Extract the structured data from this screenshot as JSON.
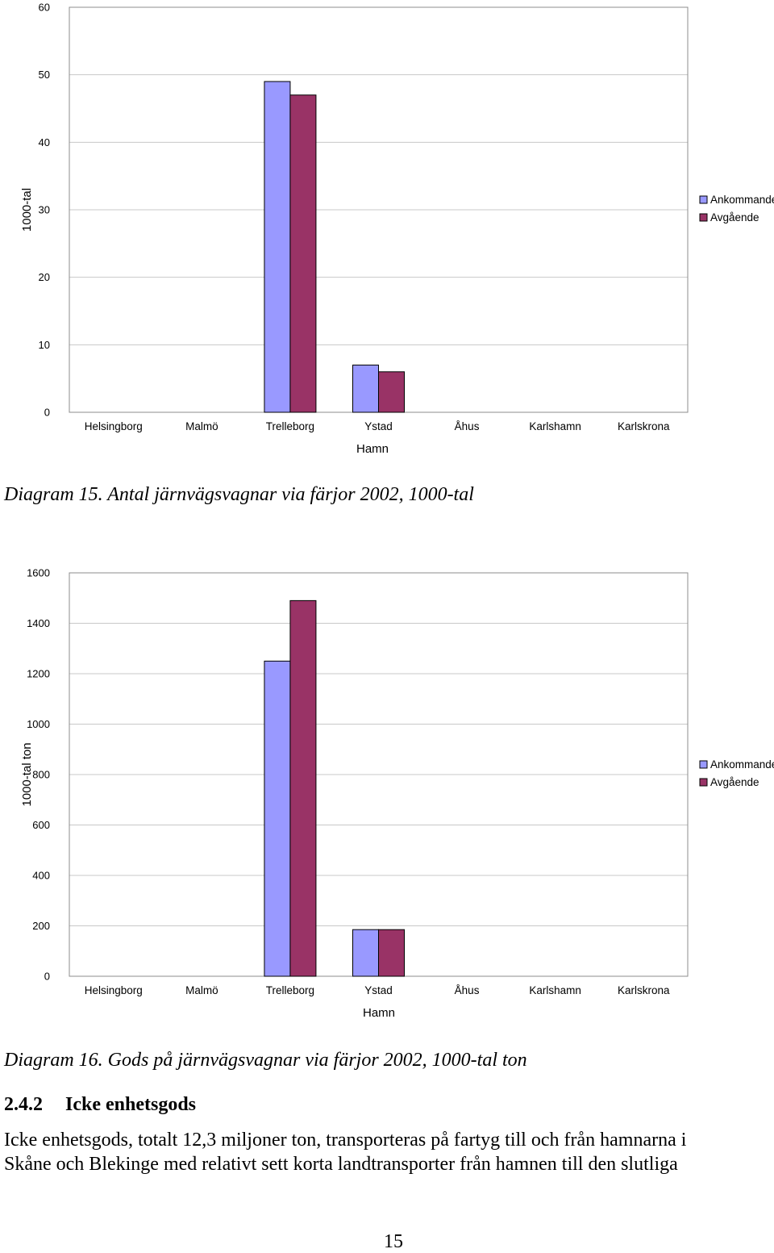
{
  "colors": {
    "ankommande": "#9999ff",
    "avgaende": "#993366",
    "gridline": "#c8c8c8",
    "bar_stroke": "#000000"
  },
  "chart_data": [
    {
      "type": "bar",
      "title": "",
      "xlabel": "Hamn",
      "ylabel": "1000-tal",
      "categories": [
        "Helsingborg",
        "Malmö",
        "Trelleborg",
        "Ystad",
        "Åhus",
        "Karlshamn",
        "Karlskrona"
      ],
      "series": [
        {
          "name": "Ankommande",
          "values": [
            0,
            0,
            49,
            7,
            0,
            0,
            0
          ]
        },
        {
          "name": "Avgående",
          "values": [
            0,
            0,
            47,
            6,
            0,
            0,
            0
          ]
        }
      ],
      "ylim": [
        0,
        60
      ],
      "yticks": [
        "0",
        "10",
        "20",
        "30",
        "40",
        "50",
        "60"
      ],
      "grid": true,
      "legend_position": "right"
    },
    {
      "type": "bar",
      "title": "",
      "xlabel": "Hamn",
      "ylabel": "1000-tal ton",
      "categories": [
        "Helsingborg",
        "Malmö",
        "Trelleborg",
        "Ystad",
        "Åhus",
        "Karlshamn",
        "Karlskrona"
      ],
      "series": [
        {
          "name": "Ankommande",
          "values": [
            0,
            0,
            1250,
            185,
            0,
            0,
            0
          ]
        },
        {
          "name": "Avgående",
          "values": [
            0,
            0,
            1490,
            185,
            0,
            0,
            0
          ]
        }
      ],
      "ylim": [
        0,
        1600
      ],
      "yticks": [
        "0",
        "200",
        "400",
        "600",
        "800",
        "1000",
        "1200",
        "1400",
        "1600"
      ],
      "grid": true,
      "legend_position": "right"
    }
  ],
  "captions": {
    "diagram15": "Diagram 15. Antal järnvägsvagnar via färjor 2002, 1000-tal",
    "diagram16": "Diagram 16. Gods på järnvägsvagnar via färjor 2002, 1000-tal ton"
  },
  "section": {
    "number": "2.4.2",
    "title": "Icke enhetsgods"
  },
  "body_lines": [
    "Icke enhetsgods, totalt 12,3 miljoner ton, transporteras på fartyg till och från hamnarna i",
    "Skåne och Blekinge med relativt sett korta landtransporter från hamnen till den slutliga"
  ],
  "page_number": "15"
}
